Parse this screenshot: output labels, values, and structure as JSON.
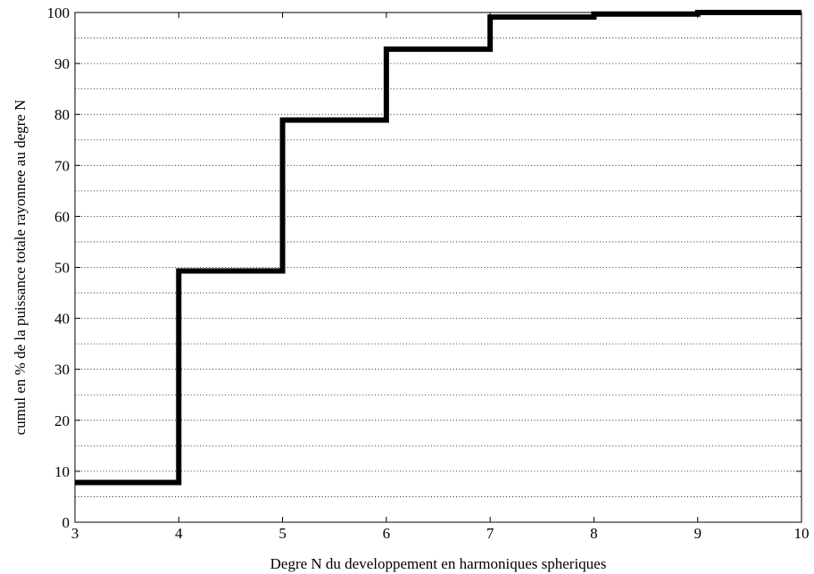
{
  "chart_data": {
    "type": "line",
    "step": "post",
    "xlabel": "Degre N du developpement en harmoniques spheriques",
    "ylabel": "cumul en % de la puissance totale rayonnee au degre N",
    "xlim": [
      3,
      10
    ],
    "ylim": [
      0,
      100
    ],
    "xticks": [
      3,
      4,
      5,
      6,
      7,
      8,
      9,
      10
    ],
    "yticks": [
      0,
      10,
      20,
      30,
      40,
      50,
      60,
      70,
      80,
      90,
      100
    ],
    "grid": "horizontal dotted, every 5 units",
    "series": [
      {
        "x": [
          3,
          4,
          5,
          6,
          7,
          8,
          9,
          10
        ],
        "y": [
          7.8,
          49.3,
          78.9,
          92.8,
          99.1,
          99.7,
          100.0,
          100.0
        ],
        "color": "#000000"
      }
    ]
  }
}
